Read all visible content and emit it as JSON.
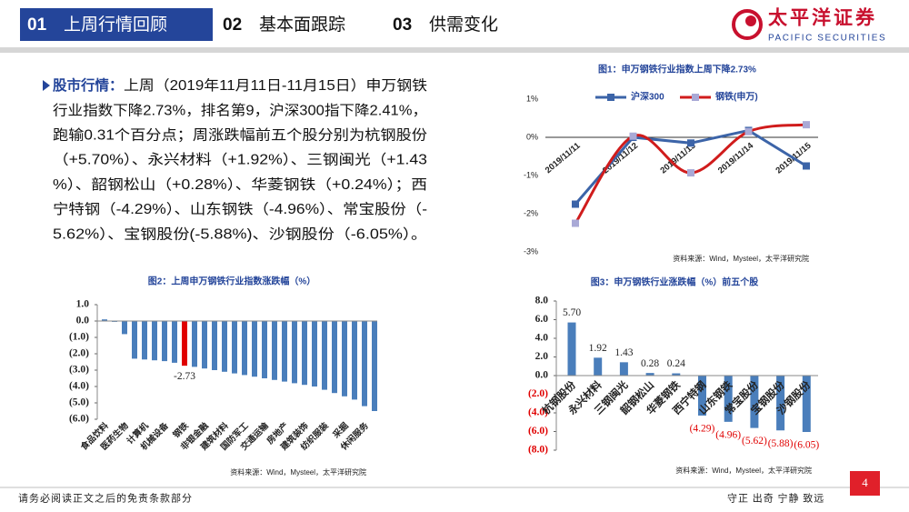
{
  "header": {
    "tabs": [
      {
        "number": "01",
        "label": "上周行情回顾"
      },
      {
        "number": "02",
        "label": "基本面跟踪"
      },
      {
        "number": "03",
        "label": "供需变化"
      }
    ],
    "logo": {
      "name": "太平洋证券",
      "subtitle": "PACIFIC SECURITIES"
    }
  },
  "summary": {
    "label": "股市行情：",
    "lines": [
      "上周（2019年11月11日-11月15日）申万钢铁",
      "行业指数下降2.73%，排名第9，沪深300指下降2.41%，",
      "跑输0.31个百分点；周涨跌幅前五个股分别为杭钢股份",
      "（+5.70%）、永兴材料（+1.92%）、三钢闽光（+1.43",
      "%）、韶钢松山（+0.28%）、华菱钢铁（+0.24%）；西",
      "宁特钢（-4.29%）、山东钢铁（-4.96%）、常宝股份（-",
      "5.62%）、宝钢股份(-5.88%)、沙钢股份（-6.05%）。"
    ]
  },
  "chart_data": [
    {
      "type": "line",
      "title": "图1：申万钢铁行业指数上周下降2.73%",
      "source": "资料来源：Wind，Mysteel，太平洋研究院",
      "categories": [
        "2019/11/11",
        "2019/11/12",
        "2019/11/13",
        "2019/11/14",
        "2019/11/15"
      ],
      "series": [
        {
          "name": "沪深300",
          "color": "#3c64a8",
          "marker_color": "#3c64a8",
          "smooth": false,
          "values": [
            -1.75,
            0.0,
            -0.15,
            0.18,
            -0.75
          ]
        },
        {
          "name": "钢铁(申万)",
          "color": "#d01c1c",
          "marker_color": "#a9a9d6",
          "smooth": true,
          "values": [
            -2.25,
            0.03,
            -0.93,
            0.15,
            0.33
          ]
        }
      ],
      "ylim": [
        -3,
        1
      ],
      "yticks": [
        {
          "value": 1,
          "label": "1%"
        },
        {
          "value": 0,
          "label": "0%"
        },
        {
          "value": -1,
          "label": "-1%"
        },
        {
          "value": -2,
          "label": "-2%"
        },
        {
          "value": -3,
          "label": "-3%"
        }
      ],
      "legend": "top"
    },
    {
      "type": "bar",
      "title": "图2：上周申万钢铁行业指数涨跌幅（%）",
      "source": "资料来源：Wind，Mysteel，太平洋研究院",
      "categories": [
        "食品饮料",
        null,
        "医药生物",
        null,
        "计算机",
        null,
        "机械设备",
        null,
        "钢铁",
        null,
        "非银金融",
        null,
        "建筑材料",
        null,
        "国防军工",
        null,
        "交通运输",
        null,
        "房地产",
        null,
        "建筑装饰",
        null,
        "纺织服装",
        null,
        "采掘",
        null,
        "休闲服务",
        null
      ],
      "values": [
        0.1,
        -0.05,
        -0.8,
        -2.3,
        -2.35,
        -2.4,
        -2.45,
        -2.55,
        -2.73,
        -2.8,
        -2.9,
        -3.0,
        -3.1,
        -3.2,
        -3.3,
        -3.4,
        -3.5,
        -3.6,
        -3.7,
        -3.8,
        -3.9,
        -4.0,
        -4.2,
        -4.4,
        -4.6,
        -4.8,
        -5.2,
        -5.5
      ],
      "value_labels": [
        null,
        null,
        null,
        null,
        null,
        null,
        null,
        null,
        "-2.73",
        null,
        null,
        null,
        null,
        null,
        null,
        null,
        null,
        null,
        null,
        null,
        null,
        null,
        null,
        null,
        null,
        null,
        null,
        null
      ],
      "colors": [
        "#4a7ebb",
        "#4a7ebb",
        "#4a7ebb",
        "#4a7ebb",
        "#4a7ebb",
        "#4a7ebb",
        "#4a7ebb",
        "#4a7ebb",
        "#e00000",
        "#4a7ebb",
        "#4a7ebb",
        "#4a7ebb",
        "#4a7ebb",
        "#4a7ebb",
        "#4a7ebb",
        "#4a7ebb",
        "#4a7ebb",
        "#4a7ebb",
        "#4a7ebb",
        "#4a7ebb",
        "#4a7ebb",
        "#4a7ebb",
        "#4a7ebb",
        "#4a7ebb",
        "#4a7ebb",
        "#4a7ebb",
        "#4a7ebb",
        "#4a7ebb"
      ],
      "ylim": [
        -6,
        1
      ],
      "yticks": [
        {
          "value": 1,
          "label": "1.0"
        },
        {
          "value": 0,
          "label": "0.0"
        },
        {
          "value": -1,
          "label": "(1.0)"
        },
        {
          "value": -2,
          "label": "(2.0)"
        },
        {
          "value": -3,
          "label": "(3.0)"
        },
        {
          "value": -4,
          "label": "(4.0)"
        },
        {
          "value": -5,
          "label": "(5.0)"
        },
        {
          "value": -6,
          "label": "(6.0)"
        }
      ],
      "negative_color": "#e00000"
    },
    {
      "type": "bar",
      "title": "图3：申万钢铁行业涨跌幅（%）前五个股",
      "source": "资料来源：Wind，Mysteel，太平洋研究院",
      "categories": [
        "杭钢股份",
        "永兴材料",
        "三钢闽光",
        "韶钢松山",
        "华菱钢铁",
        "西宁特钢",
        "山东钢铁",
        "常宝股份",
        "宝钢股份",
        "沙钢股份"
      ],
      "values": [
        5.7,
        1.92,
        1.43,
        0.28,
        0.24,
        -4.29,
        -4.96,
        -5.62,
        -5.88,
        -6.05
      ],
      "value_labels": [
        "5.70",
        "1.92",
        "1.43",
        "0.28",
        "0.24",
        "(4.29)",
        "(4.96)",
        "(5.62)",
        "(5.88)",
        "(6.05)"
      ],
      "color": "#4a7ebb",
      "ylim": [
        -8,
        8
      ],
      "yticks": [
        {
          "value": 8,
          "label": "8.0"
        },
        {
          "value": 6,
          "label": "6.0"
        },
        {
          "value": 4,
          "label": "4.0"
        },
        {
          "value": 2,
          "label": "2.0"
        },
        {
          "value": 0,
          "label": "0.0"
        },
        {
          "value": -2,
          "label": "(2.0)"
        },
        {
          "value": -4,
          "label": "(4.0)"
        },
        {
          "value": -6,
          "label": "(6.0)"
        },
        {
          "value": -8,
          "label": "(8.0)"
        }
      ],
      "negative_color": "#e00000"
    }
  ],
  "footer": {
    "disclaimer": "请务必阅读正文之后的免责条款部分",
    "motto": "守正 出奇 宁静 致远",
    "page": 4
  }
}
